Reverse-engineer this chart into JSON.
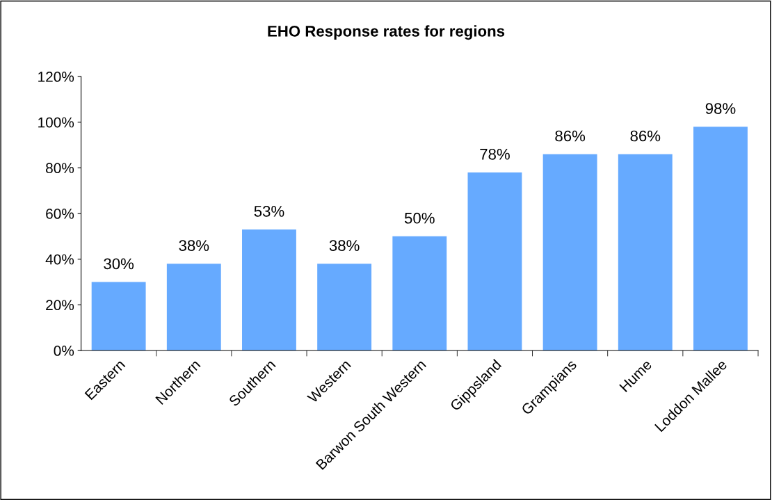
{
  "chart_data": {
    "type": "bar",
    "title": "EHO Response rates for regions",
    "categories": [
      "Eastern",
      "Northern",
      "Southern",
      "Western",
      "Barwon South Western",
      "Gippsland",
      "Grampians",
      "Hume",
      "Loddon Mallee"
    ],
    "values": [
      30,
      38,
      53,
      38,
      50,
      78,
      86,
      86,
      98
    ],
    "value_labels": [
      "30%",
      "38%",
      "53%",
      "38%",
      "50%",
      "78%",
      "86%",
      "86%",
      "98%"
    ],
    "color": "#66aaff",
    "ylim": [
      0,
      120
    ],
    "yticks": [
      {
        "value": 0,
        "label": "0%"
      },
      {
        "value": 20,
        "label": "20%"
      },
      {
        "value": 40,
        "label": "40%"
      },
      {
        "value": 60,
        "label": "60%"
      },
      {
        "value": 80,
        "label": "80%"
      },
      {
        "value": 100,
        "label": "100%"
      },
      {
        "value": 120,
        "label": "120%"
      }
    ],
    "grid": false,
    "legend": false
  }
}
